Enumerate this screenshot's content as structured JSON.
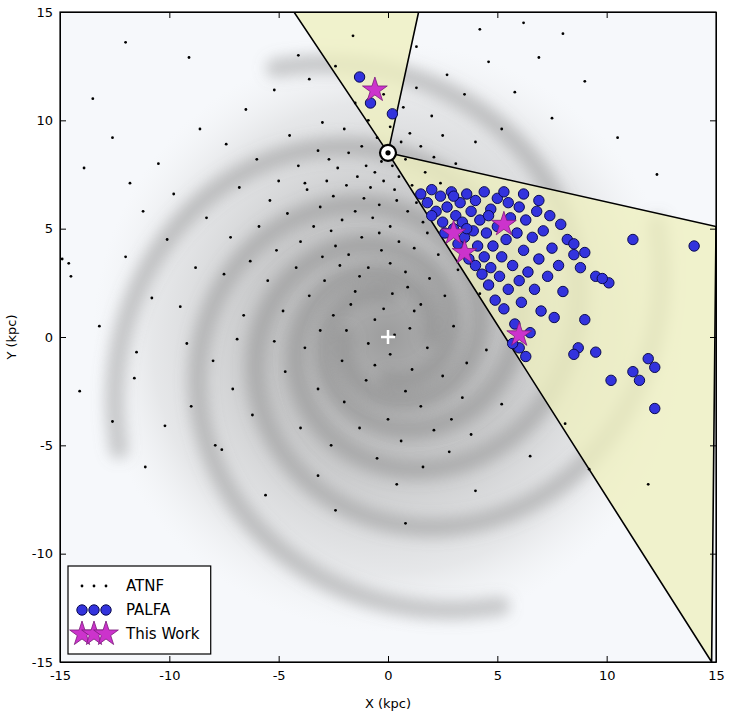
{
  "chart_data": {
    "type": "scatter",
    "xlabel": "X (kpc)",
    "ylabel": "Y (kpc)",
    "xlim": [
      -15,
      15
    ],
    "ylim": [
      -15,
      15
    ],
    "xticks": [
      -15,
      -10,
      -5,
      0,
      5,
      10,
      15
    ],
    "yticks": [
      -15,
      -10,
      -5,
      0,
      5,
      10,
      15
    ],
    "grid": false,
    "legend": "lower left",
    "regions": [
      {
        "color": "#eef0bf",
        "x": [
          0,
          -4.3,
          1.4
        ],
        "y": [
          8.5,
          15,
          15
        ]
      },
      {
        "color": "#eef0bf",
        "x": [
          0,
          15,
          14.8
        ],
        "y": [
          8.5,
          5.1,
          -15
        ]
      }
    ],
    "sun": {
      "x": 0,
      "y": 8.5
    },
    "galactic_center": {
      "x": 0,
      "y": 0
    },
    "series": [
      {
        "name": "ATNF",
        "color": "#000000",
        "marker": "point",
        "x": [
          -0.3,
          0.2,
          -0.6,
          0.5,
          -1.0,
          0.8,
          -0.2,
          0.3,
          -0.8,
          1.1,
          -1.4,
          0.6,
          -0.5,
          1.0,
          -1.2,
          0.1,
          -0.9,
          1.5,
          -1.8,
          0.4,
          -0.4,
          -1.1,
          1.3,
          -1.9,
          1.7,
          -2.3,
          2.1,
          -2.5,
          0.9,
          -0.7,
          0.1,
          -1.5,
          1.6,
          -2.1,
          -2.8,
          -3.1,
          -2.6,
          -1.2,
          0.5,
          -0.3,
          1.2,
          -1.8,
          -3.4,
          -3.7,
          -4.0,
          -2.2,
          -0.9,
          0.8,
          1.9,
          -2.9,
          -4.2,
          -4.6,
          -5.1,
          -3.6,
          -1.5,
          0.2,
          1.5,
          2.6,
          -2.5,
          -0.6,
          -4.8,
          -5.5,
          -5.9,
          -6.3,
          -3.2,
          -4.1,
          -5.0,
          -2.0,
          -3.0,
          -1.5,
          -0.2,
          0.7,
          1.3,
          2.0,
          2.5,
          -4.5,
          -6.0,
          -5.4,
          -6.8,
          -7.2,
          -7.5,
          -6.6,
          -5.2,
          -3.8,
          -2.1,
          0.1,
          1.8,
          3.0,
          -1.0,
          -3.2,
          -4.7,
          0.8,
          2.5,
          3.6,
          -2.0,
          1.5,
          3.4,
          0.0,
          -1.3,
          2.1,
          0.6,
          -8.3,
          -8.8,
          -9.5,
          -10.1,
          -9.8,
          -11.2,
          -10.5,
          -12.6,
          -13.9,
          -14.6,
          -14.5,
          -13.2,
          -11.5,
          -11.6,
          -10.8,
          -12.0,
          -9.2,
          -8.0,
          -7.1,
          -7.9,
          -7.6,
          -6.2,
          -10.2,
          -9.0,
          -11.8,
          -7.4,
          -8.6,
          -6.5,
          -5.2,
          -3.6,
          -2.4,
          -12.0,
          -4.1,
          -1.6,
          1.3,
          2.7,
          3.5,
          4.6,
          5.8,
          6.9,
          8.0,
          4.2,
          7.5,
          5.2,
          3.1,
          2.4,
          4.0,
          3.2,
          4.2,
          2.9,
          4.5,
          5.2,
          3.8,
          2.8,
          -0.5,
          -2.6,
          -4.0,
          -3.2,
          0.4,
          1.6,
          -0.2,
          1.0,
          -1.9,
          -3.1,
          -0.9,
          -6.9,
          -12.6,
          -11.1,
          -5.6,
          -2.4,
          0.8,
          4.0,
          6.5,
          8.1,
          9.2,
          11.9,
          12.3,
          10.5,
          9.0,
          6.2,
          -14.9,
          -14.1,
          -13.5,
          -9.1,
          1.2,
          2.3,
          -2.7,
          -3.8,
          0.1,
          0.9,
          -1.3,
          -0.4,
          1.8,
          -2.4,
          -3.0,
          -1.7,
          0.3,
          -0.6,
          1.1
        ],
        "y": [
          8.1,
          7.9,
          7.6,
          7.4,
          7.9,
          8.2,
          7.2,
          6.8,
          6.9,
          7.0,
          7.4,
          9.0,
          9.2,
          9.4,
          8.8,
          9.7,
          10.0,
          8.8,
          8.5,
          6.3,
          6.1,
          6.4,
          6.2,
          7.0,
          7.6,
          7.8,
          8.3,
          6.5,
          5.8,
          5.5,
          5.1,
          5.8,
          5.3,
          5.4,
          7.2,
          6.0,
          4.9,
          4.6,
          4.4,
          4.0,
          4.1,
          3.8,
          5.1,
          6.8,
          4.4,
          3.3,
          3.2,
          3.0,
          2.7,
          2.6,
          3.2,
          5.7,
          4.0,
          1.9,
          2.1,
          2.0,
          1.5,
          1.9,
          1.0,
          0.8,
          1.2,
          2.6,
          5.1,
          3.5,
          8.6,
          7.9,
          7.2,
          9.6,
          9.9,
          10.8,
          11.2,
          10.6,
          11.5,
          10.2,
          9.3,
          9.3,
          8.2,
          6.3,
          6.9,
          4.6,
          2.9,
          1.0,
          -0.2,
          -0.5,
          -1.1,
          -0.8,
          -0.5,
          0.5,
          -2.0,
          -2.4,
          -1.6,
          -2.5,
          -1.8,
          -1.2,
          -3.0,
          -3.2,
          -2.8,
          -3.8,
          -4.2,
          -4.3,
          -4.8,
          5.5,
          3.2,
          1.4,
          4.5,
          6.6,
          5.8,
          8.0,
          9.2,
          7.8,
          3.4,
          2.8,
          0.5,
          -0.7,
          -1.9,
          1.8,
          3.7,
          -0.3,
          -1.1,
          -2.4,
          -5.0,
          -5.2,
          -3.6,
          -4.1,
          -3.2,
          7.1,
          8.9,
          9.6,
          10.5,
          11.4,
          11.9,
          12.5,
          13.6,
          13.0,
          13.9,
          13.4,
          12.1,
          11.2,
          12.7,
          11.3,
          12.9,
          14.0,
          14.2,
          10.1,
          9.6,
          8.0,
          7.1,
          9.0,
          3.1,
          2.0,
          -3.8,
          -0.6,
          -3.1,
          -4.5,
          -5.3,
          -5.6,
          -5.0,
          -4.2,
          -6.4,
          -6.8,
          -6.0,
          1.3,
          0.4,
          0.3,
          0.3,
          -0.3,
          -0.1,
          -3.9,
          -6.0,
          -7.3,
          -8.0,
          -8.6,
          -7.1,
          -5.5,
          -4.0,
          -6.1,
          -6.8,
          7.5,
          9.2,
          11.8,
          14.5,
          3.6,
          -2.5,
          11.0,
          12.9,
          1.2,
          3.8,
          8.2,
          7.1,
          3.4,
          2.3,
          2.8,
          4.8,
          4.8,
          4.2,
          3.7,
          1.5,
          0.1,
          -1.3,
          -1.5
        ]
      },
      {
        "name": "PALFA",
        "color": "#3333dd",
        "marker": "circle",
        "x": [
          1.5,
          1.8,
          2.0,
          2.2,
          2.4,
          2.5,
          2.7,
          2.9,
          3.0,
          3.1,
          3.2,
          3.3,
          3.4,
          3.5,
          3.6,
          3.7,
          3.8,
          3.9,
          4.0,
          4.0,
          4.1,
          4.2,
          4.3,
          4.4,
          4.4,
          4.5,
          4.6,
          4.7,
          4.7,
          4.8,
          4.9,
          5.0,
          5.0,
          5.1,
          5.2,
          5.3,
          5.4,
          5.5,
          5.5,
          5.6,
          5.7,
          5.8,
          5.9,
          6.0,
          6.0,
          6.1,
          6.2,
          6.3,
          6.4,
          6.5,
          6.6,
          6.7,
          6.8,
          6.9,
          7.0,
          7.1,
          7.3,
          7.4,
          7.5,
          7.6,
          7.8,
          7.9,
          8.0,
          8.2,
          8.5,
          8.5,
          8.8,
          2.6,
          3.6,
          4.6,
          5.3,
          6.2,
          6.9,
          2.0,
          3.0,
          6.0,
          5.7,
          6.3,
          14.0,
          11.2,
          9.5,
          10.1,
          9.0,
          8.7,
          8.5,
          9.5,
          10.2,
          11.2,
          11.5,
          11.9,
          12.2,
          12.2,
          9.0,
          9.8,
          -1.3,
          -0.8,
          0.2
        ],
        "y": [
          6.6,
          6.2,
          6.8,
          5.8,
          6.5,
          5.3,
          6.0,
          6.7,
          5.0,
          5.6,
          4.3,
          6.2,
          5.3,
          4.6,
          6.6,
          3.6,
          5.8,
          4.9,
          3.3,
          6.3,
          4.2,
          5.4,
          2.9,
          6.7,
          3.7,
          4.8,
          2.4,
          5.9,
          3.2,
          4.2,
          1.7,
          6.4,
          5.1,
          2.8,
          3.7,
          1.3,
          4.5,
          6.2,
          2.2,
          5.5,
          3.3,
          0.6,
          4.8,
          2.6,
          6.0,
          1.6,
          4.0,
          5.4,
          3.0,
          0.2,
          4.6,
          2.2,
          5.8,
          3.6,
          1.2,
          4.9,
          2.8,
          5.6,
          4.1,
          0.9,
          3.3,
          5.2,
          2.1,
          4.5,
          3.8,
          4.3,
          3.2,
          4.8,
          5.0,
          5.6,
          6.7,
          6.6,
          6.3,
          5.6,
          6.5,
          -0.5,
          -0.3,
          -0.9,
          4.2,
          4.5,
          2.8,
          2.5,
          0.8,
          -0.5,
          -0.8,
          -0.7,
          -2.0,
          -1.6,
          -2.0,
          -1.0,
          -1.4,
          -3.3,
          3.9,
          2.7,
          12.0,
          10.8,
          10.3
        ]
      },
      {
        "name": "This Work",
        "color": "#cc33cc",
        "marker": "star",
        "x": [
          -0.6,
          3.0,
          3.5,
          5.3,
          6.0
        ],
        "y": [
          11.4,
          4.8,
          3.9,
          5.2,
          0.1
        ]
      }
    ]
  }
}
